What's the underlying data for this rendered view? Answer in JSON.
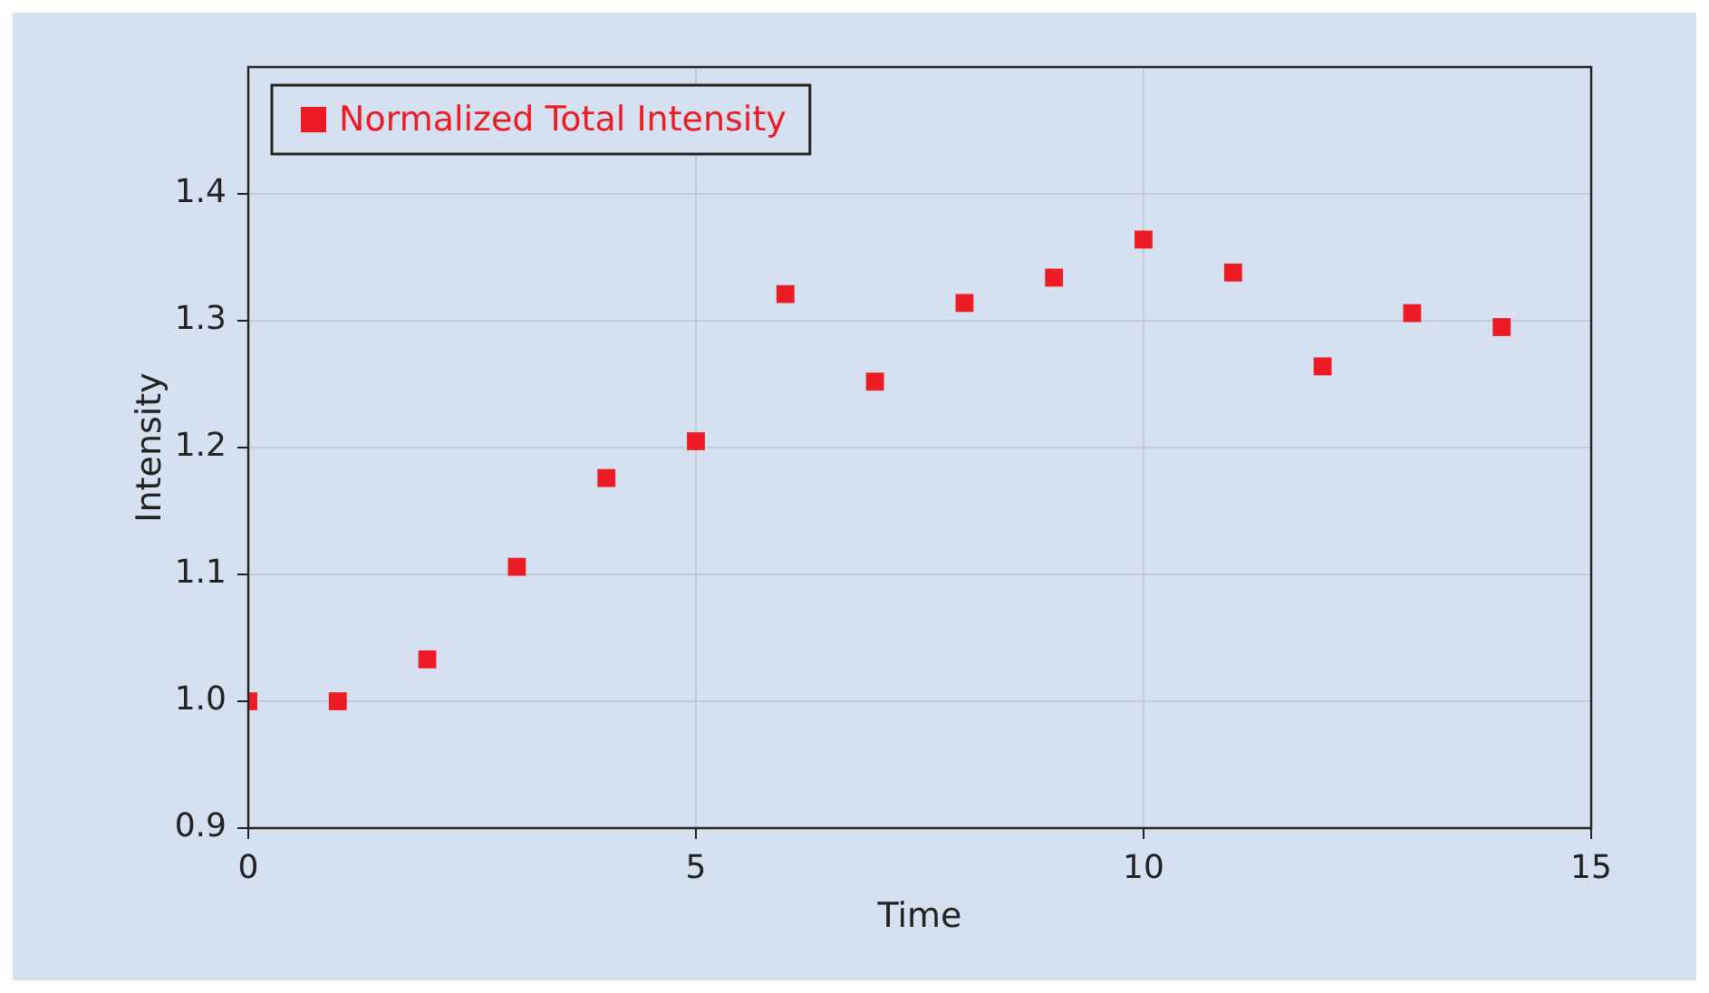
{
  "chart_data": {
    "type": "scatter",
    "xlabel": "Time",
    "ylabel": "Intensity",
    "x": [
      0,
      1,
      2,
      3,
      4,
      5,
      6,
      7,
      8,
      9,
      10,
      11,
      12,
      13,
      14
    ],
    "series": [
      {
        "name": "Normalized Total Intensity",
        "color": "#ed1c24",
        "values": [
          1.0,
          1.0,
          1.033,
          1.106,
          1.176,
          1.205,
          1.321,
          1.252,
          1.314,
          1.334,
          1.364,
          1.338,
          1.264,
          1.306,
          1.295
        ]
      }
    ],
    "xlim": [
      0,
      15
    ],
    "xticks": [
      0,
      5,
      10,
      15
    ],
    "ylim": [
      0.9,
      1.5
    ],
    "yticks": [
      0.9,
      {
        "value": 1,
        "label": "1.0"
      },
      1.1,
      1.2,
      1.3,
      1.4
    ],
    "grid": true,
    "legend": "top left",
    "marker": "square"
  }
}
